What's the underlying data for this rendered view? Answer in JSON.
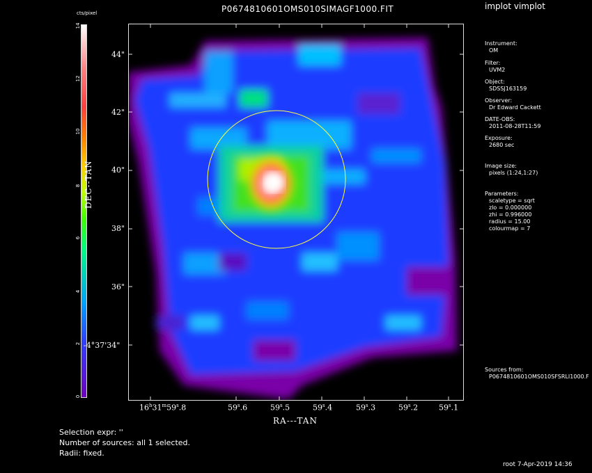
{
  "app_name": "implot vimplot",
  "title": "P0674810601OMS010SIMAGF1000.FIT",
  "colorbar": {
    "label": "cts/pixel",
    "ticks": [
      "0",
      "2",
      "4",
      "6",
      "8",
      "10",
      "12",
      "14"
    ]
  },
  "axes": {
    "xlabel": "RA---TAN",
    "ylabel": "DEC--TAN",
    "x_ticks": [
      "16h31m59s.8",
      "59s.6",
      "59s.5",
      "59s.4",
      "59s.3",
      "59s.2",
      "59s.1"
    ],
    "x_tick_first": {
      "h": "16",
      "m": "31",
      "s": "59",
      "frac": ".8"
    },
    "x_tick_frac": [
      ".6",
      ".5",
      ".4",
      ".3",
      ".2",
      ".1"
    ],
    "y_ticks": [
      "44\"",
      "42\"",
      "40\"",
      "38\"",
      "36\"",
      "-4°37'34\""
    ]
  },
  "info": {
    "instrument_label": "Instrument:",
    "instrument": "OM",
    "filter_label": "Filter:",
    "filter": "UVM2",
    "object_label": "Object:",
    "object": "SDSSJ163159",
    "observer_label": "Observer:",
    "observer": "Dr Edward Cackett",
    "date_label": "DATE-OBS:",
    "date": "2011-08-28T11:59",
    "exposure_label": "Exposure:",
    "exposure": "2680 sec",
    "image_size_label": "Image size:",
    "image_size": "pixels (1:24,1:27)",
    "parameters_label": "Parameters:",
    "scaletype": "scaletype = sqrt",
    "zlo": "zlo = 0.000000",
    "zhi": "zhi = 0.996000",
    "radius": "radius = 15.00",
    "colourmap": "colourmap = 7",
    "sources_label": "Sources from:",
    "sources_file": "P0674810601OMS010SFSRLI1000.F"
  },
  "bottom": {
    "selection_expr": "Selection expr: ''",
    "num_sources": "Number of sources: all 1 selected.",
    "radii": "Radii: fixed."
  },
  "footer": "root  7-Apr-2019 14:36"
}
